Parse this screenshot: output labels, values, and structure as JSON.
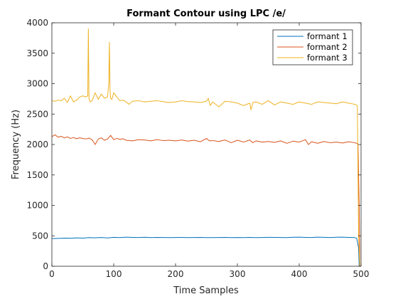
{
  "chart_data": {
    "type": "line",
    "title": "Formant Contour using LPC /e/",
    "xlabel": "Time Samples",
    "ylabel": "Frequency (Hz)",
    "xlim": [
      0,
      500
    ],
    "ylim": [
      0,
      4000
    ],
    "xticks": [
      0,
      100,
      200,
      300,
      400,
      500
    ],
    "yticks": [
      0,
      500,
      1000,
      1500,
      2000,
      2500,
      3000,
      3500,
      4000
    ],
    "grid": false,
    "legend_position": "top-right",
    "series": [
      {
        "name": "formant 1",
        "color": "#0072BD",
        "x": [
          0,
          10,
          20,
          30,
          40,
          50,
          60,
          70,
          80,
          90,
          100,
          110,
          120,
          130,
          140,
          150,
          160,
          170,
          180,
          190,
          200,
          210,
          220,
          230,
          240,
          250,
          260,
          270,
          280,
          290,
          300,
          310,
          320,
          330,
          340,
          350,
          360,
          370,
          380,
          390,
          400,
          410,
          420,
          430,
          440,
          450,
          460,
          470,
          480,
          490,
          493,
          496,
          497
        ],
        "values": [
          455,
          458,
          462,
          460,
          466,
          462,
          470,
          468,
          472,
          465,
          475,
          470,
          478,
          474,
          472,
          476,
          470,
          473,
          472,
          470,
          472,
          474,
          470,
          472,
          473,
          471,
          470,
          472,
          474,
          470,
          472,
          471,
          473,
          470,
          472,
          475,
          474,
          472,
          471,
          476,
          478,
          474,
          472,
          478,
          475,
          472,
          476,
          478,
          474,
          470,
          460,
          300,
          0
        ]
      },
      {
        "name": "formant 2",
        "color": "#D95319",
        "x": [
          0,
          5,
          10,
          15,
          20,
          25,
          30,
          35,
          40,
          45,
          50,
          55,
          60,
          65,
          70,
          75,
          80,
          85,
          90,
          95,
          100,
          105,
          110,
          115,
          120,
          130,
          140,
          150,
          160,
          170,
          180,
          190,
          200,
          210,
          220,
          230,
          240,
          250,
          255,
          260,
          270,
          280,
          290,
          300,
          310,
          320,
          325,
          330,
          340,
          350,
          360,
          370,
          380,
          390,
          400,
          410,
          415,
          420,
          430,
          440,
          450,
          460,
          470,
          480,
          490,
          495,
          497,
          498
        ],
        "values": [
          2130,
          2160,
          2120,
          2135,
          2110,
          2125,
          2100,
          2115,
          2095,
          2110,
          2100,
          2090,
          2105,
          2080,
          2000,
          2090,
          2110,
          2070,
          2090,
          2150,
          2080,
          2100,
          2085,
          2095,
          2070,
          2060,
          2080,
          2075,
          2060,
          2080,
          2065,
          2070,
          2060,
          2075,
          2055,
          2070,
          2045,
          2100,
          2060,
          2065,
          2050,
          2075,
          2030,
          2070,
          2040,
          2075,
          2030,
          2060,
          2040,
          2050,
          2035,
          2060,
          2020,
          2055,
          2040,
          2080,
          2000,
          2045,
          2020,
          2050,
          2030,
          2040,
          2025,
          2045,
          2030,
          2010,
          1000,
          0
        ]
      },
      {
        "name": "formant 3",
        "color": "#EDB120",
        "x": [
          0,
          5,
          10,
          15,
          20,
          25,
          30,
          35,
          40,
          45,
          50,
          55,
          58,
          59,
          60,
          62,
          65,
          70,
          75,
          80,
          85,
          90,
          92,
          93,
          94,
          95,
          97,
          100,
          105,
          110,
          115,
          120,
          125,
          130,
          140,
          150,
          160,
          170,
          180,
          190,
          200,
          210,
          220,
          230,
          240,
          250,
          253,
          256,
          260,
          270,
          280,
          290,
          300,
          310,
          320,
          322,
          325,
          330,
          340,
          350,
          360,
          370,
          380,
          390,
          400,
          410,
          420,
          430,
          440,
          450,
          460,
          470,
          480,
          490,
          494,
          496,
          498
        ],
        "values": [
          2720,
          2710,
          2730,
          2720,
          2760,
          2690,
          2800,
          2700,
          2730,
          2780,
          2800,
          2780,
          2800,
          3900,
          2750,
          2700,
          2720,
          2850,
          2740,
          2830,
          2760,
          2780,
          3000,
          3680,
          2900,
          2760,
          2740,
          2850,
          2780,
          2720,
          2730,
          2700,
          2660,
          2710,
          2720,
          2700,
          2710,
          2720,
          2705,
          2690,
          2700,
          2720,
          2705,
          2700,
          2690,
          2710,
          2760,
          2640,
          2700,
          2620,
          2710,
          2700,
          2680,
          2640,
          2680,
          2570,
          2690,
          2700,
          2660,
          2720,
          2650,
          2700,
          2680,
          2660,
          2700,
          2680,
          2660,
          2700,
          2690,
          2680,
          2670,
          2700,
          2680,
          2660,
          2640,
          500,
          0
        ]
      }
    ]
  }
}
